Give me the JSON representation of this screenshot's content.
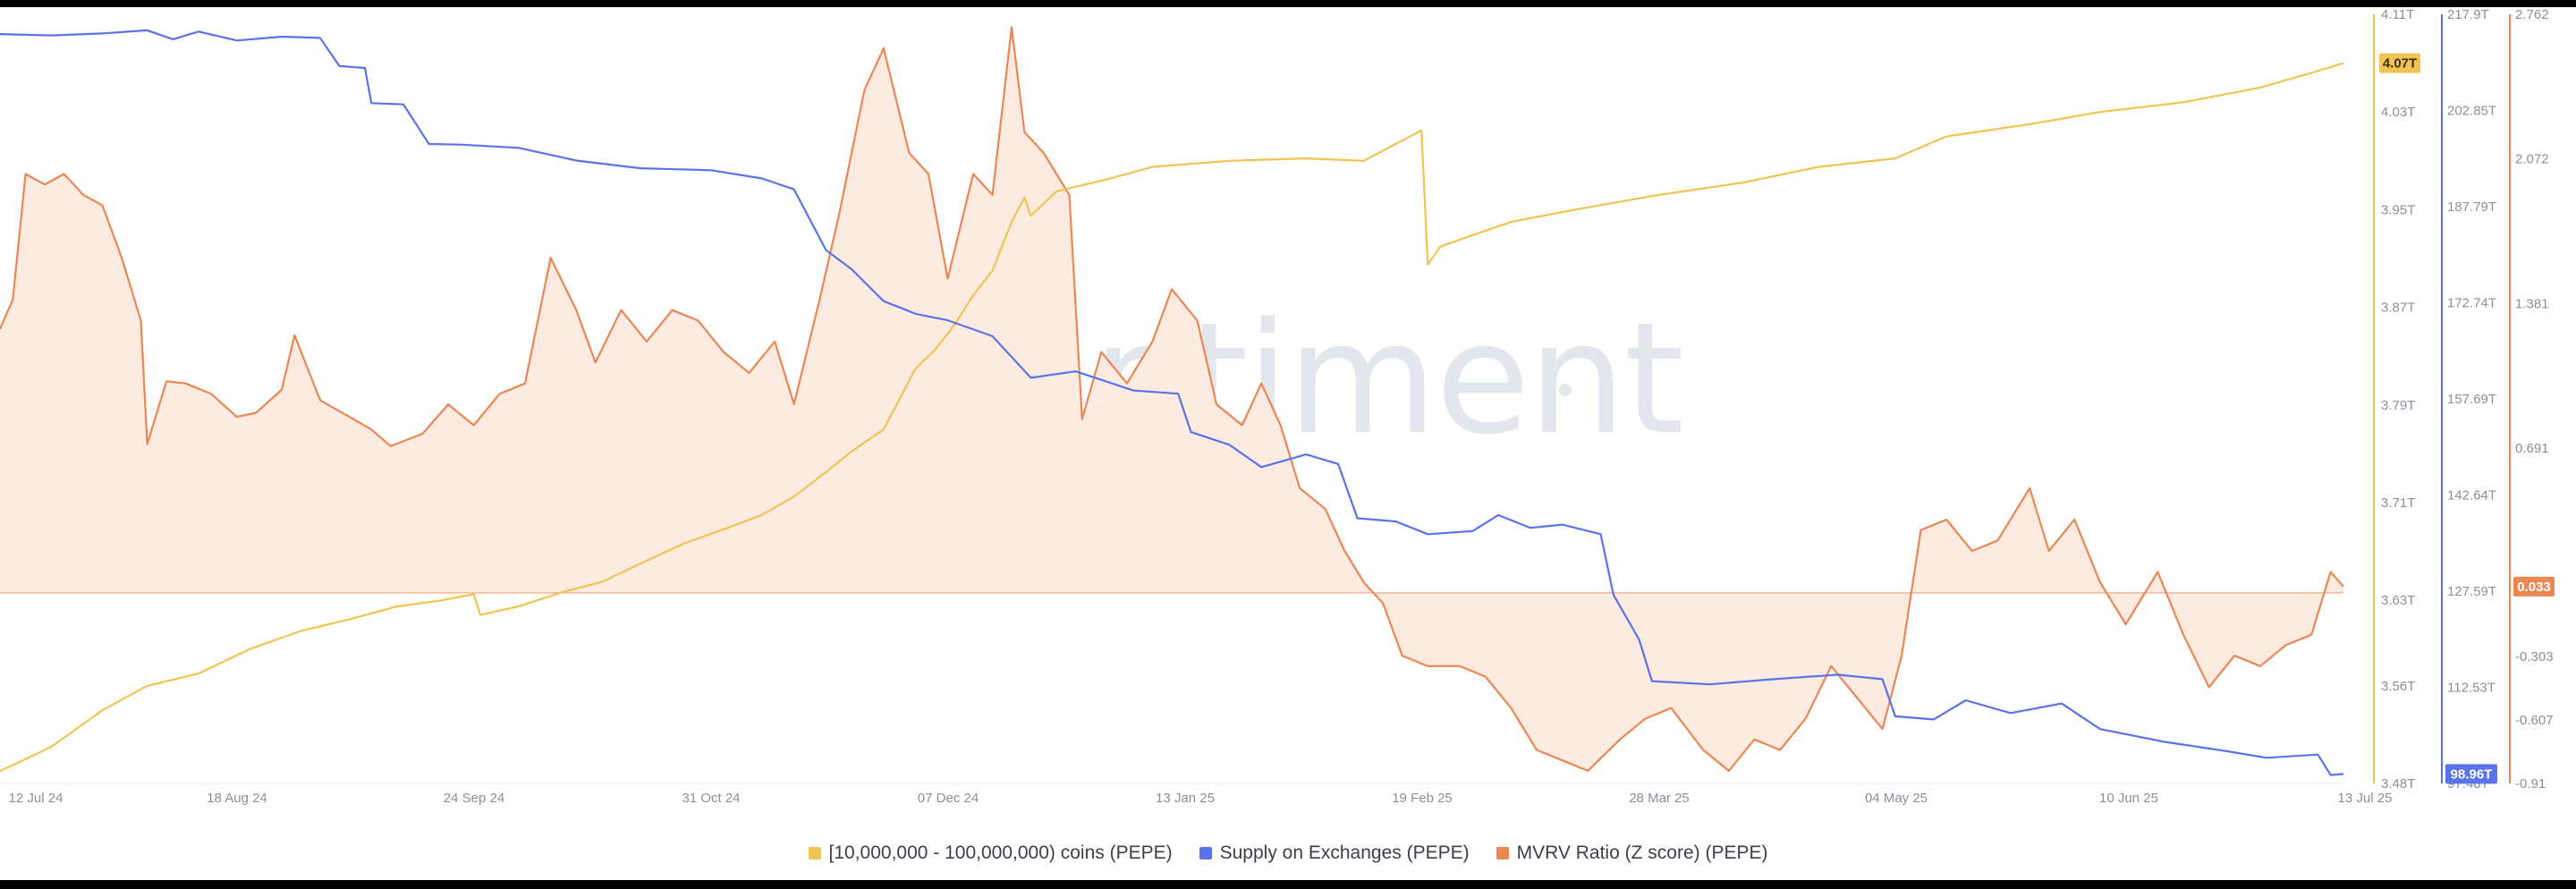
{
  "watermark": "santiment",
  "colors": {
    "holders": "#f0c452",
    "supply": "#5b73e8",
    "mvrv": "#ea8752",
    "mvrv_fill": "#fdebe2",
    "text": "#8a8f99"
  },
  "legend": [
    {
      "label": "[10,000,000 - 100,000,000) coins (PEPE)",
      "color": "#f0c452"
    },
    {
      "label": "Supply on Exchanges (PEPE)",
      "color": "#5b73e8"
    },
    {
      "label": "MVRV Ratio (Z score) (PEPE)",
      "color": "#ea8752"
    }
  ],
  "chart_data": {
    "type": "line",
    "x_tick_labels": [
      "12 Jul 24",
      "18 Aug 24",
      "24 Sep 24",
      "31 Oct 24",
      "07 Dec 24",
      "13 Jan 25",
      "19 Feb 25",
      "28 Mar 25",
      "04 May 25",
      "10 Jun 25",
      "13 Jul 25"
    ],
    "x": [
      "2024-07-12",
      "2025-07-13"
    ],
    "grid": false,
    "legend_position": "bottom",
    "axes": {
      "holders": {
        "ylim": [
          3.48,
          4.11
        ],
        "unit": "T",
        "ticks": [
          "4.11T",
          "4.03T",
          "3.95T",
          "3.87T",
          "3.79T",
          "3.71T",
          "3.63T",
          "3.56T",
          "3.48T"
        ],
        "last_value_label": "4.07T"
      },
      "supply": {
        "ylim": [
          97.48,
          217.9
        ],
        "unit": "T",
        "ticks": [
          "217.9T",
          "202.85T",
          "187.79T",
          "172.74T",
          "157.69T",
          "142.64T",
          "127.59T",
          "112.53T",
          "97.48T"
        ],
        "last_value_label": "98.96T"
      },
      "mvrv": {
        "ylim": [
          -0.91,
          2.762
        ],
        "ticks": [
          "2.762",
          "2.072",
          "1.381",
          "0.691",
          "-0.303",
          "-0.607",
          "-0.91"
        ],
        "last_value_label": "0.033"
      }
    },
    "series": [
      {
        "name": "[10,000,000 - 100,000,000) coins (PEPE)",
        "axis": "holders",
        "color": "#f0c452",
        "points": [
          [
            "2024-07-12",
            3.49
          ],
          [
            "2024-07-20",
            3.51
          ],
          [
            "2024-07-28",
            3.54
          ],
          [
            "2024-08-04",
            3.56
          ],
          [
            "2024-08-12",
            3.57
          ],
          [
            "2024-08-20",
            3.59
          ],
          [
            "2024-08-28",
            3.605
          ],
          [
            "2024-09-05",
            3.615
          ],
          [
            "2024-09-12",
            3.625
          ],
          [
            "2024-09-19",
            3.63
          ],
          [
            "2024-09-24",
            3.635
          ],
          [
            "2024-09-25",
            3.618
          ],
          [
            "2024-10-01",
            3.625
          ],
          [
            "2024-10-08",
            3.637
          ],
          [
            "2024-10-14",
            3.645
          ],
          [
            "2024-10-20",
            3.66
          ],
          [
            "2024-10-27",
            3.677
          ],
          [
            "2024-11-03",
            3.69
          ],
          [
            "2024-11-08",
            3.7
          ],
          [
            "2024-11-13",
            3.715
          ],
          [
            "2024-11-18",
            3.735
          ],
          [
            "2024-11-22",
            3.752
          ],
          [
            "2024-11-27",
            3.77
          ],
          [
            "2024-12-02",
            3.82
          ],
          [
            "2024-12-05",
            3.835
          ],
          [
            "2024-12-08",
            3.855
          ],
          [
            "2024-12-11",
            3.88
          ],
          [
            "2024-12-14",
            3.9
          ],
          [
            "2024-12-17",
            3.94
          ],
          [
            "2024-12-19",
            3.96
          ],
          [
            "2024-12-20",
            3.945
          ],
          [
            "2024-12-24",
            3.965
          ],
          [
            "2025-01-01",
            3.975
          ],
          [
            "2025-01-08",
            3.985
          ],
          [
            "2025-01-20",
            3.99
          ],
          [
            "2025-02-01",
            3.992
          ],
          [
            "2025-02-10",
            3.99
          ],
          [
            "2025-02-19",
            4.015
          ],
          [
            "2025-02-20",
            3.905
          ],
          [
            "2025-02-22",
            3.92
          ],
          [
            "2025-03-05",
            3.94
          ],
          [
            "2025-03-15",
            3.95
          ],
          [
            "2025-03-28",
            3.962
          ],
          [
            "2025-04-10",
            3.972
          ],
          [
            "2025-04-22",
            3.985
          ],
          [
            "2025-05-04",
            3.992
          ],
          [
            "2025-05-12",
            4.01
          ],
          [
            "2025-05-25",
            4.02
          ],
          [
            "2025-06-05",
            4.03
          ],
          [
            "2025-06-18",
            4.038
          ],
          [
            "2025-06-30",
            4.05
          ],
          [
            "2025-07-08",
            4.062
          ],
          [
            "2025-07-13",
            4.07
          ]
        ]
      },
      {
        "name": "Supply on Exchanges (PEPE)",
        "axis": "supply",
        "color": "#5b73e8",
        "points": [
          [
            "2024-07-12",
            214.8
          ],
          [
            "2024-07-20",
            214.6
          ],
          [
            "2024-07-28",
            214.9
          ],
          [
            "2024-08-04",
            215.4
          ],
          [
            "2024-08-08",
            214.0
          ],
          [
            "2024-08-12",
            215.2
          ],
          [
            "2024-08-18",
            213.8
          ],
          [
            "2024-08-25",
            214.4
          ],
          [
            "2024-08-31",
            214.2
          ],
          [
            "2024-09-03",
            209.8
          ],
          [
            "2024-09-07",
            209.5
          ],
          [
            "2024-09-08",
            204.0
          ],
          [
            "2024-09-13",
            203.8
          ],
          [
            "2024-09-17",
            197.6
          ],
          [
            "2024-09-22",
            197.5
          ],
          [
            "2024-10-01",
            197.0
          ],
          [
            "2024-10-10",
            195.0
          ],
          [
            "2024-10-20",
            193.8
          ],
          [
            "2024-10-31",
            193.5
          ],
          [
            "2024-11-08",
            192.2
          ],
          [
            "2024-11-13",
            190.5
          ],
          [
            "2024-11-18",
            181.0
          ],
          [
            "2024-11-22",
            178.0
          ],
          [
            "2024-11-27",
            173.0
          ],
          [
            "2024-12-02",
            171.0
          ],
          [
            "2024-12-07",
            170.0
          ],
          [
            "2024-12-14",
            167.5
          ],
          [
            "2024-12-20",
            161.0
          ],
          [
            "2024-12-27",
            162.0
          ],
          [
            "2025-01-05",
            159.0
          ],
          [
            "2025-01-12",
            158.5
          ],
          [
            "2025-01-14",
            152.5
          ],
          [
            "2025-01-20",
            150.5
          ],
          [
            "2025-01-25",
            147.0
          ],
          [
            "2025-02-01",
            149.0
          ],
          [
            "2025-02-06",
            147.5
          ],
          [
            "2025-02-09",
            139.0
          ],
          [
            "2025-02-15",
            138.5
          ],
          [
            "2025-02-20",
            136.5
          ],
          [
            "2025-02-27",
            137.0
          ],
          [
            "2025-03-03",
            139.5
          ],
          [
            "2025-03-08",
            137.5
          ],
          [
            "2025-03-13",
            138.0
          ],
          [
            "2025-03-19",
            136.5
          ],
          [
            "2025-03-21",
            127.0
          ],
          [
            "2025-03-25",
            120.0
          ],
          [
            "2025-03-27",
            113.5
          ],
          [
            "2025-04-05",
            113.0
          ],
          [
            "2025-04-15",
            113.8
          ],
          [
            "2025-04-25",
            114.5
          ],
          [
            "2025-05-02",
            113.8
          ],
          [
            "2025-05-04",
            108.0
          ],
          [
            "2025-05-10",
            107.5
          ],
          [
            "2025-05-15",
            110.5
          ],
          [
            "2025-05-22",
            108.5
          ],
          [
            "2025-05-30",
            110.0
          ],
          [
            "2025-06-05",
            106.0
          ],
          [
            "2025-06-15",
            104.0
          ],
          [
            "2025-06-25",
            102.5
          ],
          [
            "2025-07-01",
            101.5
          ],
          [
            "2025-07-09",
            102.0
          ],
          [
            "2025-07-11",
            98.8
          ],
          [
            "2025-07-13",
            98.96
          ]
        ]
      },
      {
        "name": "MVRV Ratio (Z score) (PEPE)",
        "axis": "mvrv",
        "color": "#ea8752",
        "points": [
          [
            "2024-07-12",
            1.26
          ],
          [
            "2024-07-14",
            1.4
          ],
          [
            "2024-07-16",
            2.0
          ],
          [
            "2024-07-19",
            1.95
          ],
          [
            "2024-07-22",
            2.0
          ],
          [
            "2024-07-25",
            1.9
          ],
          [
            "2024-07-28",
            1.85
          ],
          [
            "2024-07-31",
            1.6
          ],
          [
            "2024-08-03",
            1.3
          ],
          [
            "2024-08-04",
            0.71
          ],
          [
            "2024-08-07",
            1.01
          ],
          [
            "2024-08-10",
            1.0
          ],
          [
            "2024-08-14",
            0.95
          ],
          [
            "2024-08-18",
            0.84
          ],
          [
            "2024-08-21",
            0.86
          ],
          [
            "2024-08-25",
            0.97
          ],
          [
            "2024-08-27",
            1.23
          ],
          [
            "2024-08-31",
            0.92
          ],
          [
            "2024-09-04",
            0.85
          ],
          [
            "2024-09-08",
            0.78
          ],
          [
            "2024-09-11",
            0.7
          ],
          [
            "2024-09-16",
            0.76
          ],
          [
            "2024-09-20",
            0.9
          ],
          [
            "2024-09-24",
            0.8
          ],
          [
            "2024-09-28",
            0.95
          ],
          [
            "2024-10-02",
            1.0
          ],
          [
            "2024-10-06",
            1.6
          ],
          [
            "2024-10-10",
            1.35
          ],
          [
            "2024-10-13",
            1.1
          ],
          [
            "2024-10-17",
            1.35
          ],
          [
            "2024-10-21",
            1.2
          ],
          [
            "2024-10-25",
            1.35
          ],
          [
            "2024-10-29",
            1.3
          ],
          [
            "2024-11-02",
            1.15
          ],
          [
            "2024-11-06",
            1.05
          ],
          [
            "2024-11-10",
            1.2
          ],
          [
            "2024-11-13",
            0.9
          ],
          [
            "2024-11-17",
            1.4
          ],
          [
            "2024-11-20",
            1.8
          ],
          [
            "2024-11-24",
            2.4
          ],
          [
            "2024-11-27",
            2.6
          ],
          [
            "2024-12-01",
            2.1
          ],
          [
            "2024-12-04",
            2.0
          ],
          [
            "2024-12-07",
            1.5
          ],
          [
            "2024-12-11",
            2.0
          ],
          [
            "2024-12-14",
            1.9
          ],
          [
            "2024-12-17",
            2.7
          ],
          [
            "2024-12-19",
            2.2
          ],
          [
            "2024-12-22",
            2.1
          ],
          [
            "2024-12-26",
            1.9
          ],
          [
            "2024-12-28",
            0.83
          ],
          [
            "2024-12-31",
            1.15
          ],
          [
            "2025-01-04",
            1.0
          ],
          [
            "2025-01-08",
            1.2
          ],
          [
            "2025-01-11",
            1.45
          ],
          [
            "2025-01-15",
            1.3
          ],
          [
            "2025-01-18",
            0.9
          ],
          [
            "2025-01-22",
            0.8
          ],
          [
            "2025-01-25",
            1.0
          ],
          [
            "2025-01-28",
            0.8
          ],
          [
            "2025-01-31",
            0.5
          ],
          [
            "2025-02-04",
            0.4
          ],
          [
            "2025-02-07",
            0.2
          ],
          [
            "2025-02-10",
            0.05
          ],
          [
            "2025-02-13",
            -0.05
          ],
          [
            "2025-02-16",
            -0.3
          ],
          [
            "2025-02-20",
            -0.35
          ],
          [
            "2025-02-25",
            -0.35
          ],
          [
            "2025-03-01",
            -0.4
          ],
          [
            "2025-03-05",
            -0.55
          ],
          [
            "2025-03-09",
            -0.75
          ],
          [
            "2025-03-13",
            -0.8
          ],
          [
            "2025-03-17",
            -0.85
          ],
          [
            "2025-03-22",
            -0.7
          ],
          [
            "2025-03-26",
            -0.6
          ],
          [
            "2025-03-30",
            -0.55
          ],
          [
            "2025-04-04",
            -0.75
          ],
          [
            "2025-04-08",
            -0.85
          ],
          [
            "2025-04-12",
            -0.7
          ],
          [
            "2025-04-16",
            -0.75
          ],
          [
            "2025-04-20",
            -0.6
          ],
          [
            "2025-04-24",
            -0.35
          ],
          [
            "2025-04-28",
            -0.5
          ],
          [
            "2025-05-02",
            -0.65
          ],
          [
            "2025-05-05",
            -0.3
          ],
          [
            "2025-05-08",
            0.3
          ],
          [
            "2025-05-12",
            0.35
          ],
          [
            "2025-05-16",
            0.2
          ],
          [
            "2025-05-20",
            0.25
          ],
          [
            "2025-05-25",
            0.5
          ],
          [
            "2025-05-28",
            0.2
          ],
          [
            "2025-06-01",
            0.35
          ],
          [
            "2025-06-05",
            0.05
          ],
          [
            "2025-06-09",
            -0.15
          ],
          [
            "2025-06-14",
            0.1
          ],
          [
            "2025-06-18",
            -0.2
          ],
          [
            "2025-06-22",
            -0.45
          ],
          [
            "2025-06-26",
            -0.3
          ],
          [
            "2025-06-30",
            -0.35
          ],
          [
            "2025-07-04",
            -0.25
          ],
          [
            "2025-07-08",
            -0.2
          ],
          [
            "2025-07-11",
            0.1
          ],
          [
            "2025-07-13",
            0.03
          ]
        ]
      }
    ]
  }
}
